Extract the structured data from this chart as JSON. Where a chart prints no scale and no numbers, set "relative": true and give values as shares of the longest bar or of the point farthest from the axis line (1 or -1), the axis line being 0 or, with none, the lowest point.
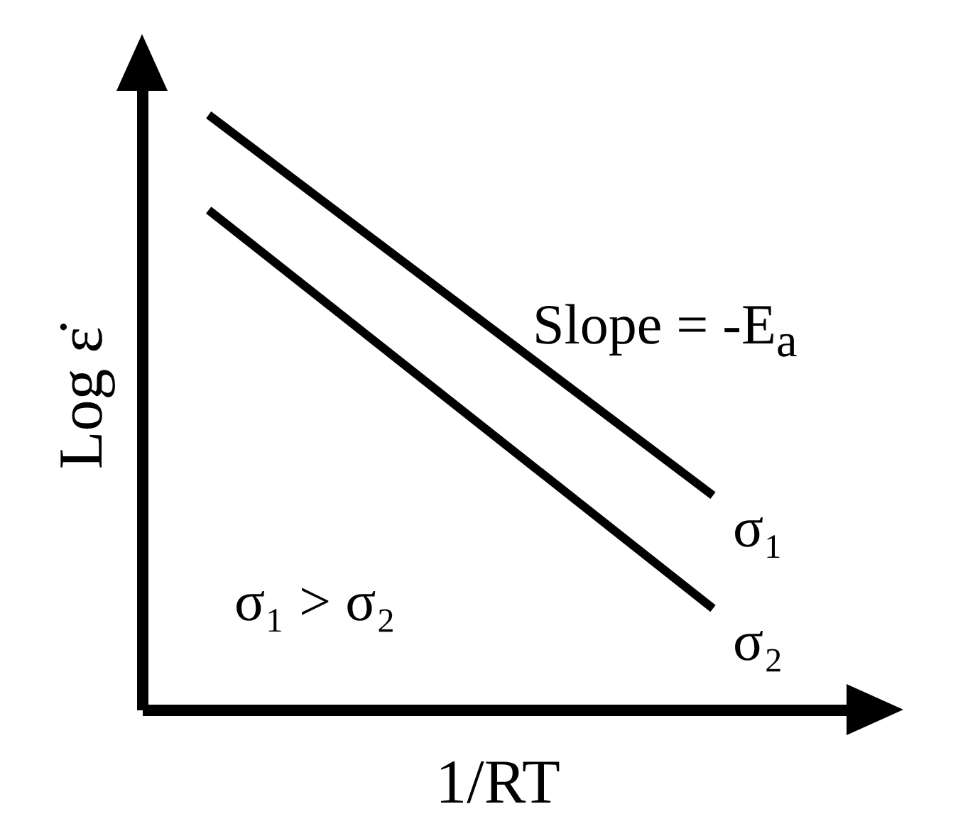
{
  "chart_data": {
    "type": "line",
    "xlabel": "1/RT",
    "ylabel": "Log ε̇",
    "categories": [
      null,
      null
    ],
    "relative": true,
    "legend": false,
    "series": [
      {
        "name": "σ₁",
        "color": "#000000",
        "values": [
          1,
          0.36
        ]
      },
      {
        "name": "σ₂",
        "color": "#000000",
        "values": [
          0.84,
          0.17
        ]
      }
    ],
    "annotations": [
      "Slope = -E$_{a}$",
      "σ₁ > σ₂"
    ]
  }
}
